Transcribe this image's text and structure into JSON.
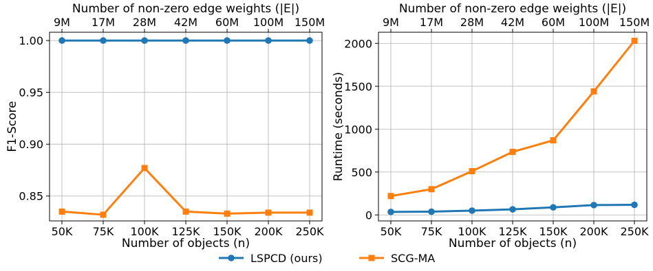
{
  "chart_data": [
    {
      "type": "line",
      "title": "",
      "xlabel": "Number of objects (n)",
      "x2label": "Number of non-zero edge weights (|E|)",
      "ylabel": "F1-Score",
      "categories": [
        "50K",
        "75K",
        "100K",
        "125K",
        "150K",
        "200K",
        "250K"
      ],
      "top_categories": [
        "9M",
        "17M",
        "28M",
        "42M",
        "60M",
        "100M",
        "150M"
      ],
      "ylim": [
        0.826,
        1.008
      ],
      "yticks": [
        0.85,
        0.9,
        0.95,
        1.0
      ],
      "ytick_labels": [
        "0.85",
        "0.90",
        "0.95",
        "1.00"
      ],
      "grid": true,
      "series": [
        {
          "name": "LSPCD (ours)",
          "color": "#1f77b4",
          "marker": "circle",
          "values": [
            1.0,
            1.0,
            1.0,
            1.0,
            1.0,
            1.0,
            1.0
          ]
        },
        {
          "name": "SCG-MA",
          "color": "#ff7f0e",
          "marker": "square",
          "values": [
            0.835,
            0.832,
            0.877,
            0.835,
            0.833,
            0.834,
            0.834
          ]
        }
      ]
    },
    {
      "type": "line",
      "title": "",
      "xlabel": "Number of objects (n)",
      "x2label": "Number of non-zero edge weights (|E|)",
      "ylabel": "Runtime (seconds)",
      "categories": [
        "50K",
        "75K",
        "100K",
        "125K",
        "150K",
        "200K",
        "250K"
      ],
      "top_categories": [
        "9M",
        "17M",
        "28M",
        "42M",
        "60M",
        "100M",
        "150M"
      ],
      "ylim": [
        -70,
        2130
      ],
      "yticks": [
        0,
        500,
        1000,
        1500,
        2000
      ],
      "ytick_labels": [
        "0",
        "500",
        "1000",
        "1500",
        "2000"
      ],
      "grid": true,
      "series": [
        {
          "name": "LSPCD (ours)",
          "color": "#1f77b4",
          "marker": "circle",
          "values": [
            35,
            38,
            50,
            65,
            88,
            115,
            118
          ]
        },
        {
          "name": "SCG-MA",
          "color": "#ff7f0e",
          "marker": "square",
          "values": [
            220,
            300,
            510,
            735,
            870,
            1440,
            2030
          ]
        }
      ]
    }
  ],
  "legend": {
    "placement": "bottom-center",
    "entries": [
      {
        "label": "LSPCD (ours)",
        "color": "#1f77b4",
        "marker": "circle"
      },
      {
        "label": "SCG-MA",
        "color": "#ff7f0e",
        "marker": "square"
      }
    ]
  }
}
